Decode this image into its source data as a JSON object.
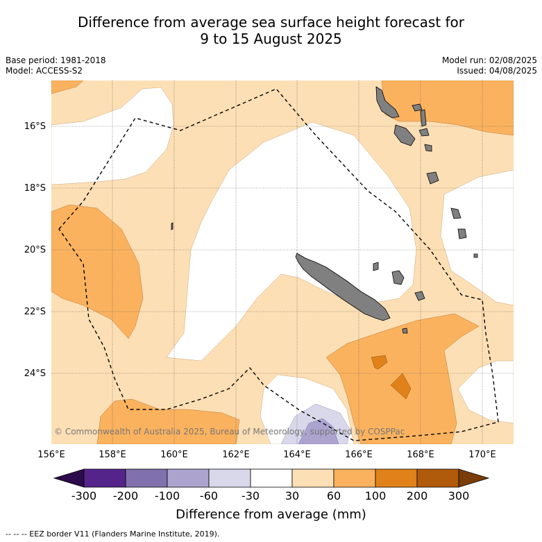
{
  "title_line1": "Difference from average sea surface height forecast for",
  "title_line2": "9 to 15 August 2025",
  "base_period": "Base period: 1981-2018",
  "model": "Model: ACCESS-S2",
  "model_run": "Model run: 02/08/2025",
  "issued": "Issued: 04/08/2025",
  "copyright": "© Commonwealth of Australia 2025, Bureau of Meteorology, supported by COSPPac",
  "lon_ticks": [
    "156°E",
    "158°E",
    "160°E",
    "162°E",
    "164°E",
    "166°E",
    "168°E",
    "170°E"
  ],
  "lat_ticks": [
    "16°S",
    "18°S",
    "20°S",
    "22°S",
    "24°S"
  ],
  "colorbar": {
    "title": "Difference from average (mm)",
    "tick_labels": [
      "-300",
      "-200",
      "-100",
      "-60",
      "-30",
      "30",
      "60",
      "100",
      "200",
      "300"
    ],
    "colors": [
      "#2c0a4b",
      "#54248a",
      "#8170ae",
      "#aca4cf",
      "#d8d8ea",
      "#ffffff",
      "#fddfb5",
      "#fbb25e",
      "#e08219",
      "#b05a0c",
      "#7a3d09"
    ]
  },
  "legend_note": "-- -- -- EEZ border V11 (Flanders Marine Institute, 2019)."
}
